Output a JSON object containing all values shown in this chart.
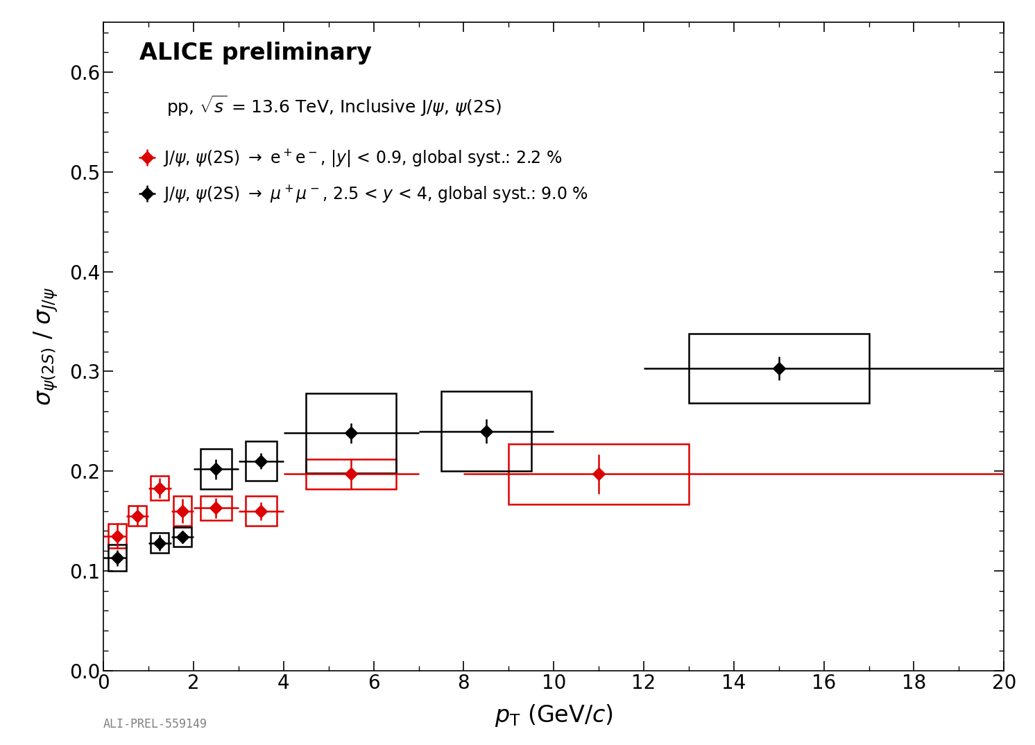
{
  "title": "ALICE preliminary",
  "subtitle": "pp, \\sqrt{s} = 13.6 TeV, Inclusive J/\\psi, \\psi(2S)",
  "ylabel": "$\\sigma_{\\psi(2S)}$ / $\\sigma_{J/\\psi}$",
  "xlabel": "$p_{\\rm T}$ (GeV/$c$)",
  "xlim": [
    0,
    20
  ],
  "ylim": [
    0,
    0.65
  ],
  "watermark": "ALI-PREL-559149",
  "red_legend": "J/$\\psi$, $\\psi$(2S) $\\rightarrow$ e$^+$e$^-$, |$y$| < 0.9, global syst.: 2.2 %",
  "black_legend": "J/$\\psi$, $\\psi$(2S) $\\rightarrow$ $\\mu^+\\mu^-$, 2.5 < $y$ < 4, global syst.: 9.0 %",
  "red_x": [
    0.3,
    0.75,
    1.25,
    1.75,
    2.5,
    3.5,
    5.5,
    11.0
  ],
  "red_y": [
    0.135,
    0.155,
    0.183,
    0.16,
    0.163,
    0.16,
    0.197,
    0.197
  ],
  "red_xerr_lo": [
    0.3,
    0.25,
    0.25,
    0.25,
    0.5,
    0.5,
    1.5,
    3.0
  ],
  "red_xerr_hi": [
    0.2,
    0.25,
    0.25,
    0.25,
    0.5,
    0.5,
    1.5,
    9.0
  ],
  "red_yerr_lo": [
    0.013,
    0.01,
    0.01,
    0.012,
    0.01,
    0.009,
    0.015,
    0.02
  ],
  "red_yerr_hi": [
    0.013,
    0.01,
    0.01,
    0.012,
    0.01,
    0.009,
    0.015,
    0.02
  ],
  "red_syst_lo": [
    0.012,
    0.01,
    0.012,
    0.015,
    0.012,
    0.015,
    0.015,
    0.03
  ],
  "red_syst_hi": [
    0.012,
    0.01,
    0.012,
    0.015,
    0.012,
    0.015,
    0.015,
    0.03
  ],
  "red_syst_w": [
    0.2,
    0.2,
    0.2,
    0.2,
    0.35,
    0.35,
    1.0,
    2.0
  ],
  "black_x": [
    0.3,
    1.25,
    1.75,
    2.5,
    3.5,
    5.5,
    8.5,
    15.0
  ],
  "black_y": [
    0.113,
    0.128,
    0.134,
    0.202,
    0.21,
    0.238,
    0.24,
    0.303
  ],
  "black_xerr_lo": [
    0.3,
    0.25,
    0.25,
    0.5,
    0.5,
    1.5,
    1.5,
    3.0
  ],
  "black_xerr_hi": [
    0.2,
    0.25,
    0.25,
    0.5,
    0.5,
    1.5,
    1.5,
    5.0
  ],
  "black_yerr_lo": [
    0.008,
    0.008,
    0.006,
    0.01,
    0.008,
    0.01,
    0.012,
    0.012
  ],
  "black_yerr_hi": [
    0.008,
    0.008,
    0.006,
    0.01,
    0.008,
    0.01,
    0.012,
    0.012
  ],
  "black_syst_lo": [
    0.013,
    0.01,
    0.01,
    0.02,
    0.02,
    0.04,
    0.04,
    0.035
  ],
  "black_syst_hi": [
    0.013,
    0.01,
    0.01,
    0.02,
    0.02,
    0.04,
    0.04,
    0.035
  ],
  "black_syst_w": [
    0.2,
    0.2,
    0.2,
    0.35,
    0.35,
    1.0,
    1.0,
    2.0
  ],
  "bg_color": "#ffffff",
  "red_color": "#dd0000",
  "black_color": "#000000",
  "axis_label_fontsize": 24,
  "tick_label_fontsize": 20,
  "legend_fontsize": 17,
  "title_fontsize": 24,
  "subtitle_fontsize": 18
}
